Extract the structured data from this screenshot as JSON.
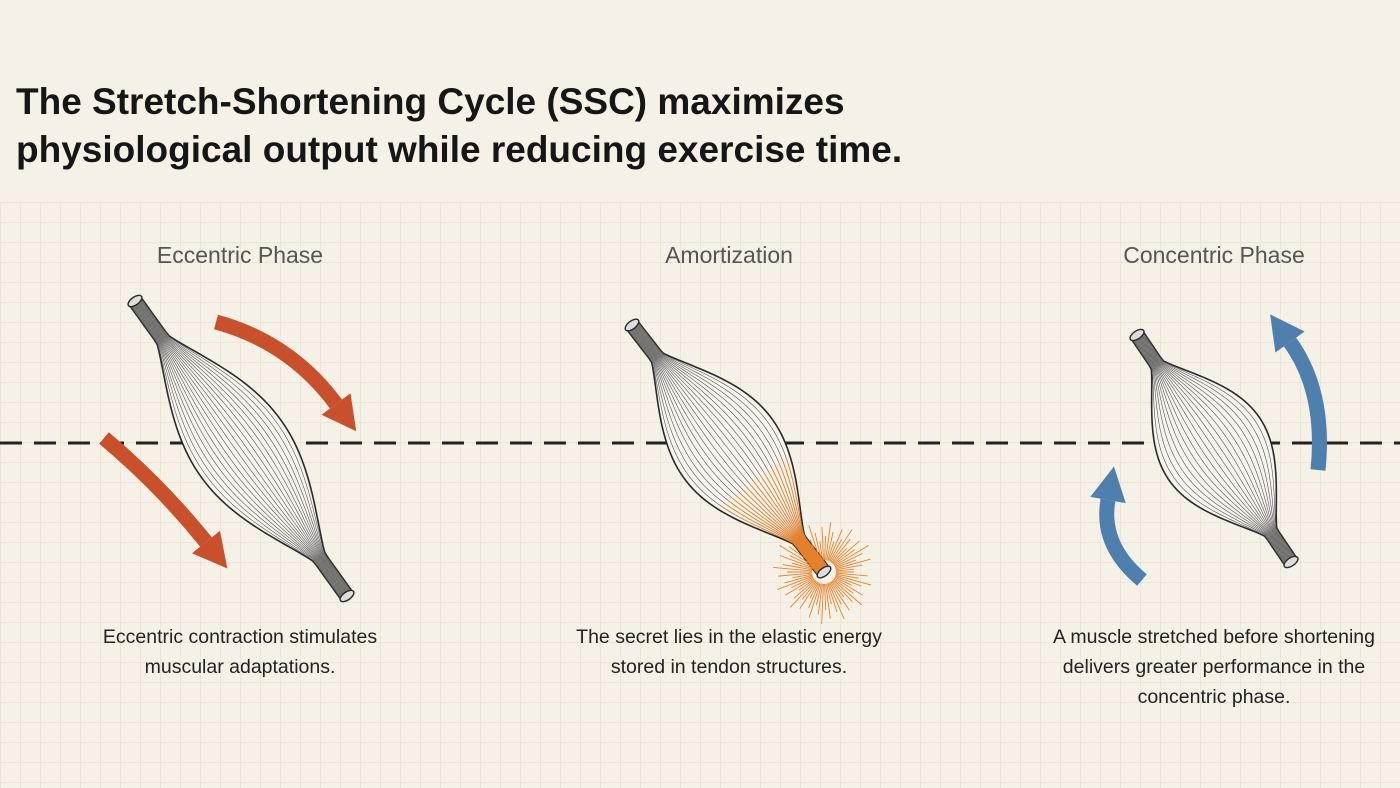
{
  "header": {
    "title_lines": [
      "The Stretch-Shortening Cycle (SSC) maximizes",
      "physiological output while reducing exercise time."
    ]
  },
  "phases": [
    {
      "heading": "Eccentric Phase",
      "caption_lines": [
        "Eccentric contraction stimulates",
        "muscular adaptations."
      ]
    },
    {
      "heading": "Amortization",
      "caption_lines": [
        "The secret lies in the elastic energy",
        "stored in tendon structures."
      ]
    },
    {
      "heading": "Concentric Phase",
      "caption_lines": [
        "A muscle stretched before shortening",
        "delivers greater performance in the",
        "concentric phase."
      ]
    }
  ]
}
